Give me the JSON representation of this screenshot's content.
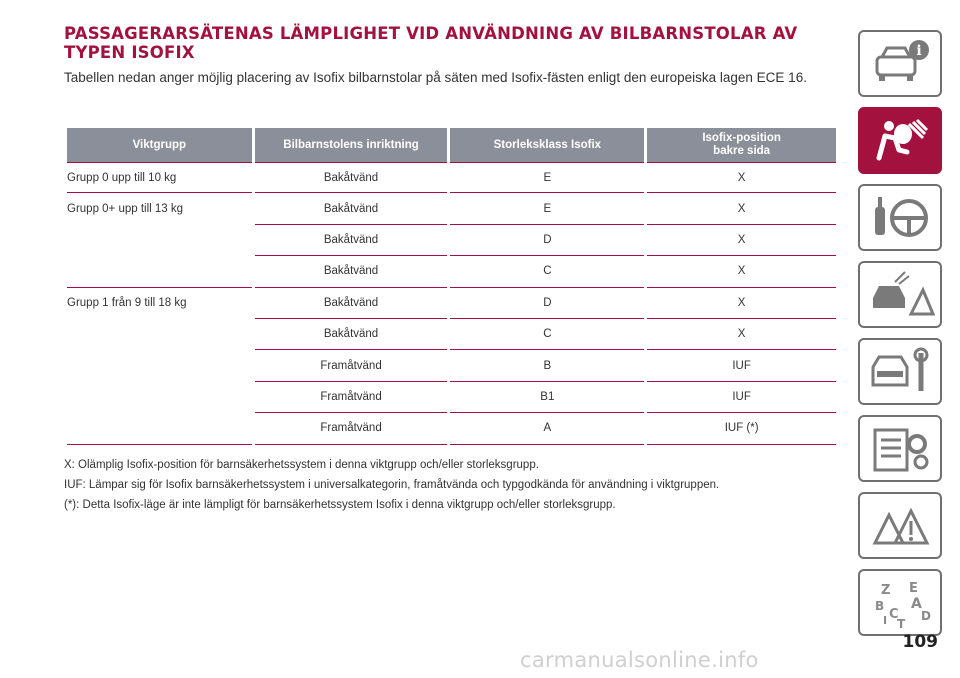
{
  "title": "PASSAGERARSÄTENAS LÄMPLIGHET VID ANVÄNDNING AV BILBARNSTOLAR AV TYPEN ISOFIX",
  "intro": "Tabellen nedan anger möjlig placering av Isofix bilbarnstolar på säten med Isofix-fästen enligt den europeiska lagen ECE 16.",
  "table": {
    "headers": [
      "Viktgrupp",
      "Bilbarnstolens inriktning",
      "Storleksklass Isofix",
      "Isofix-position bakre sida"
    ],
    "rows": [
      {
        "group": "Grupp 0 upp till 10 kg",
        "orientation": "Bakåtvänd",
        "size": "E",
        "position": "X"
      },
      {
        "group": "Grupp 0+ upp till 13 kg",
        "orientation": "Bakåtvänd",
        "size": "E",
        "position": "X"
      },
      {
        "group": "",
        "orientation": "Bakåtvänd",
        "size": "D",
        "position": "X"
      },
      {
        "group": "",
        "orientation": "Bakåtvänd",
        "size": "C",
        "position": "X"
      },
      {
        "group": "Grupp 1 från 9 till 18 kg",
        "orientation": "Bakåtvänd",
        "size": "D",
        "position": "X"
      },
      {
        "group": "",
        "orientation": "Bakåtvänd",
        "size": "C",
        "position": "X"
      },
      {
        "group": "",
        "orientation": "Framåtvänd",
        "size": "B",
        "position": "IUF"
      },
      {
        "group": "",
        "orientation": "Framåtvänd",
        "size": "B1",
        "position": "IUF"
      },
      {
        "group": "",
        "orientation": "Framåtvänd",
        "size": "A",
        "position": "IUF (*)"
      }
    ]
  },
  "notes": [
    "X: Olämplig Isofix-position för barnsäkerhetssystem i denna viktgrupp och/eller storleksgrupp.",
    "IUF: Lämpar sig för Isofix barnsäkerhetssystem i universalkategorin, framåtvända och typgodkända för användning i viktgruppen.",
    "(*): Detta Isofix-läge är inte lämpligt för barnsäkerhetssystem Isofix i denna viktgrupp och/eller storleksgrupp."
  ],
  "sidebar": {
    "tabs": [
      {
        "icon": "car-info-icon",
        "active": false
      },
      {
        "icon": "airbag-safety-icon",
        "active": true
      },
      {
        "icon": "key-steering-wheel-icon",
        "active": false
      },
      {
        "icon": "car-warning-icon",
        "active": false
      },
      {
        "icon": "car-service-wrench-icon",
        "active": false
      },
      {
        "icon": "specifications-gear-icon",
        "active": false
      },
      {
        "icon": "warning-triangles-icon",
        "active": false
      },
      {
        "icon": "alphabetical-index-icon",
        "active": false
      }
    ],
    "index_letters": "Z E B A C I T D"
  },
  "page_number": "109",
  "watermark": "carmanualsonline.info",
  "colors": {
    "accent": "#a3123f",
    "header_bg": "#8a8f99",
    "tab_border": "#707070"
  }
}
